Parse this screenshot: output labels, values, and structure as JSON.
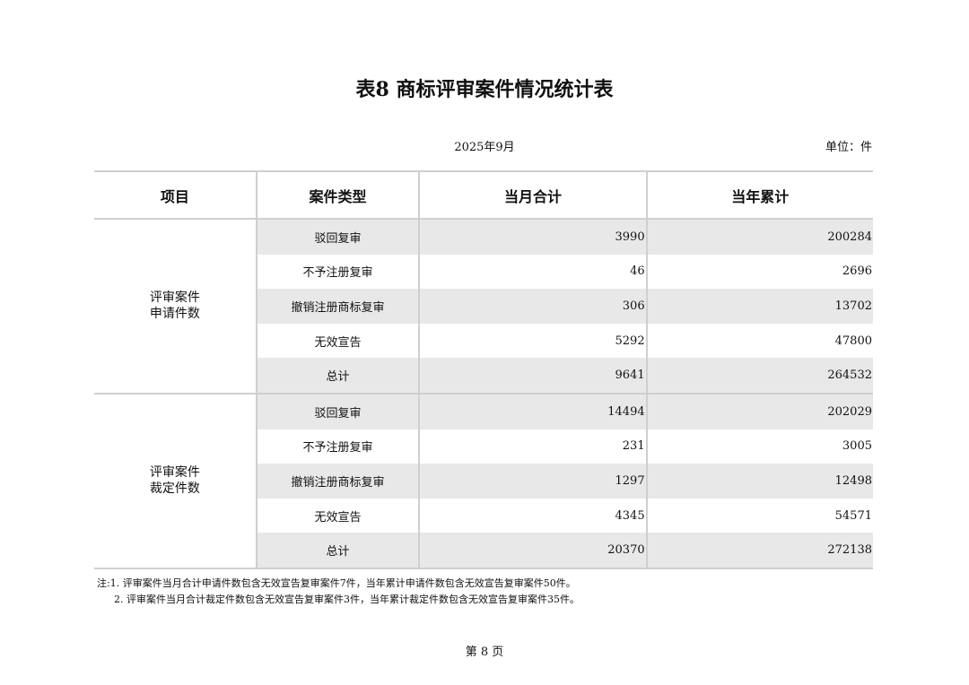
{
  "title": "表8  商标评审案件情况统计表",
  "date": "2025年9月",
  "unit": "单位：件",
  "headers": [
    "项目",
    "案件类型",
    "当月合计",
    "当年累计"
  ],
  "groups": [
    {
      "label_lines": [
        "评审案件",
        "申请件数"
      ],
      "rows": [
        {
          "type": "驳回复审",
          "month": "3990",
          "year": "200284"
        },
        {
          "type": "不予注册复审",
          "month": "46",
          "year": "2696"
        },
        {
          "type": "撤销注册商标复审",
          "month": "306",
          "year": "13702"
        },
        {
          "type": "无效宣告",
          "month": "5292",
          "year": "47800"
        },
        {
          "type": "总计",
          "month": "9641",
          "year": "264532"
        }
      ]
    },
    {
      "label_lines": [
        "评审案件",
        "裁定件数"
      ],
      "rows": [
        {
          "type": "驳回复审",
          "month": "14494",
          "year": "202029"
        },
        {
          "type": "不予注册复审",
          "month": "231",
          "year": "3005"
        },
        {
          "type": "撤销注册商标复审",
          "month": "1297",
          "year": "12498"
        },
        {
          "type": "无效宣告",
          "month": "4345",
          "year": "54571"
        },
        {
          "type": "总计",
          "month": "20370",
          "year": "272138"
        }
      ]
    }
  ],
  "notes": [
    "注:1. 评审案件当月合计申请件数包含无效宣告复审案件7件，当年累计申请件数包含无效宣告复审案件50件。",
    "2. 评审案件当月合计裁定件数包含无效宣告复审案件3件，当年累计裁定件数包含无效宣告复审案件35件。"
  ],
  "page": "第 8 页"
}
